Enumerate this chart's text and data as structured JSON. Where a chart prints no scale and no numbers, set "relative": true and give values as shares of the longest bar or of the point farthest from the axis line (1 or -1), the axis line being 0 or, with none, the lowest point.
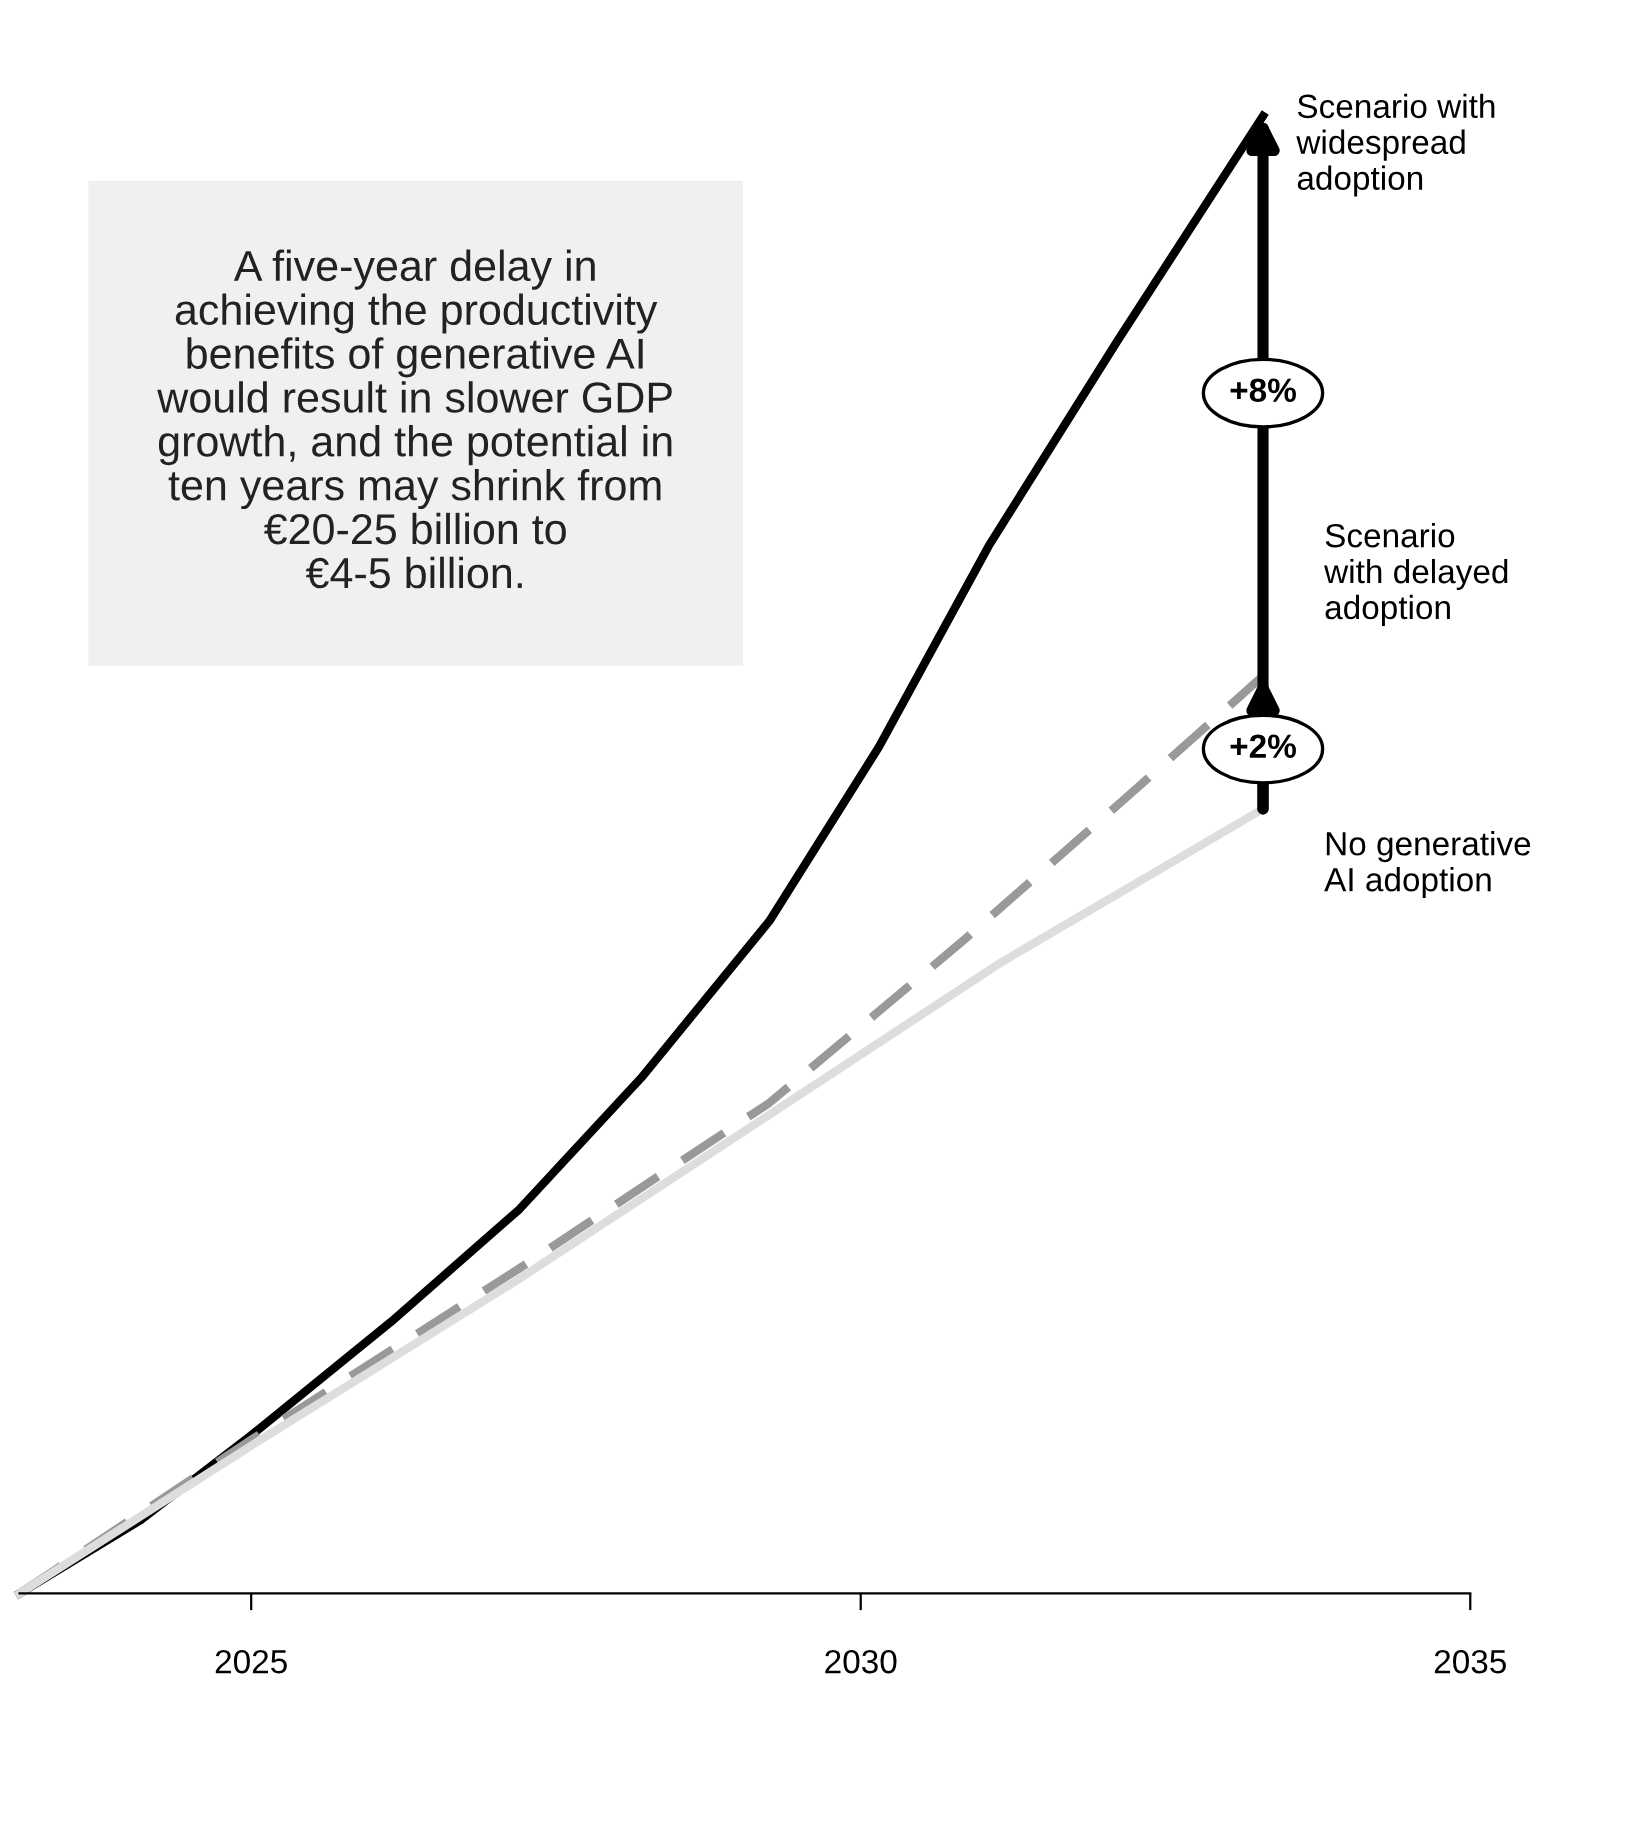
{
  "chart_data": {
    "type": "line",
    "relative": true,
    "xlim": [
      2023.1,
      2035
    ],
    "xticks": [
      2025,
      2030,
      2035
    ],
    "grid": false,
    "legend": "right",
    "series": [
      {
        "name": "Scenario with\nwidespread\nadoption",
        "color": "#000000",
        "line_style": "solid",
        "x": [
          2023.1,
          2024.1,
          2025,
          2026.15,
          2027.2,
          2028.2,
          2029.25,
          2030.15,
          2031.05,
          2032.1,
          2033.3
        ],
        "values": [
          0,
          0.05,
          0.107,
          0.184,
          0.26,
          0.349,
          0.455,
          0.573,
          0.709,
          0.847,
          1
        ]
      },
      {
        "name": "Scenario\nwith delayed\nadoption",
        "color": "#999999",
        "line_style": "dashed",
        "x": [
          2023.1,
          2025,
          2027.2,
          2029.25,
          2030.8,
          2032.1,
          2033.3
        ],
        "values": [
          0,
          0.104,
          0.22,
          0.332,
          0.439,
          0.533,
          0.621
        ]
      },
      {
        "name": "No generative\nAI adoption",
        "color": "#dddddd",
        "line_style": "solid",
        "x": [
          2023.1,
          2025,
          2027.2,
          2029.25,
          2031.15,
          2033.3
        ],
        "values": [
          0,
          0.1,
          0.213,
          0.324,
          0.427,
          0.531
        ]
      }
    ],
    "annotations": [
      "A five-year delay in\nachieving the productivity\nbenefits of generative AI\nwould result in slower GDP\ngrowth, and the potential in\nten years may shrink from\n€20-25 billion to\n€4-5 billion.",
      "+8%",
      "+2%"
    ]
  }
}
